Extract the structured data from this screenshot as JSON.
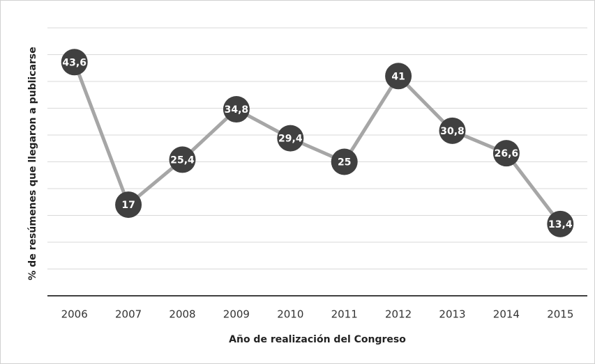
{
  "chart_data": {
    "type": "line",
    "ylabel": "% de resúmenes que llegaron a publicarse",
    "xlabel": "Año de realización del Congreso",
    "categories": [
      "2006",
      "2007",
      "2008",
      "2009",
      "2010",
      "2011",
      "2012",
      "2013",
      "2014",
      "2015"
    ],
    "series": [
      {
        "color": "#a6a6a6",
        "marker_color": "#404040",
        "values": [
          43.6,
          17,
          25.4,
          34.8,
          29.4,
          25,
          41,
          30.8,
          26.6,
          13.4
        ],
        "value_labels": [
          "43,6",
          "17",
          "25,4",
          "34,8",
          "29,4",
          "25",
          "41",
          "30,8",
          "26,6",
          "13,4"
        ]
      }
    ],
    "ylim": [
      0,
      50
    ],
    "yticks": [
      0,
      5,
      10,
      15,
      20,
      25,
      30,
      35,
      40,
      45,
      50
    ],
    "grid": true
  }
}
